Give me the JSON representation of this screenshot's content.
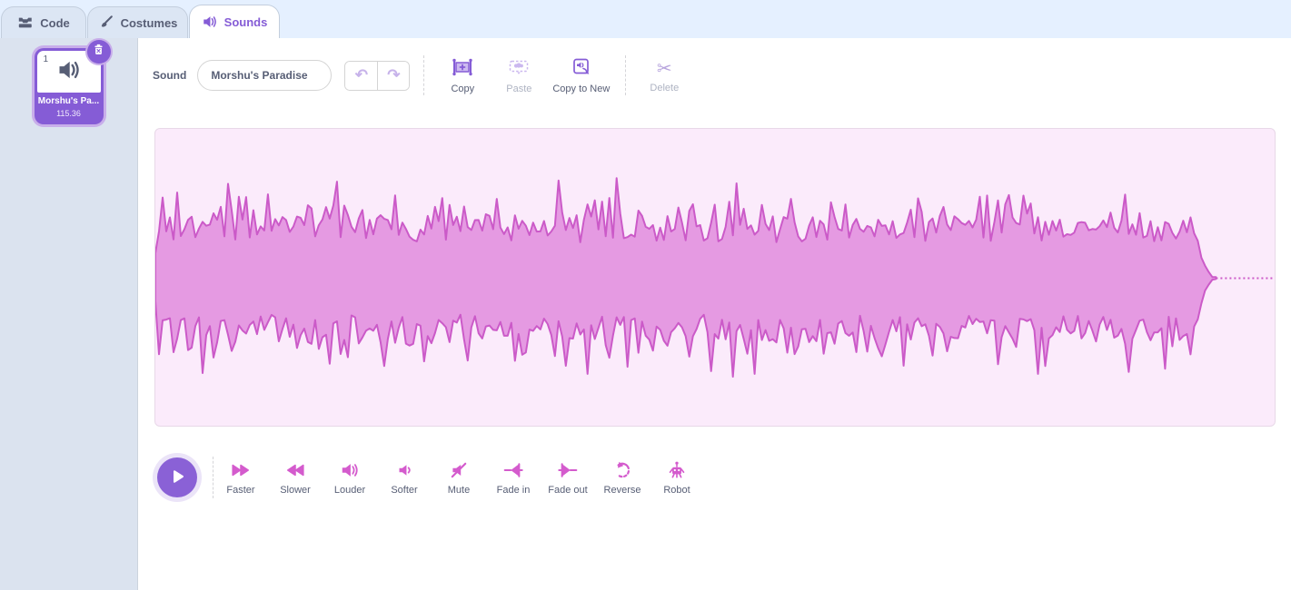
{
  "tabs": [
    {
      "label": "Code",
      "active": false
    },
    {
      "label": "Costumes",
      "active": false
    },
    {
      "label": "Sounds",
      "active": true
    }
  ],
  "sidebar": {
    "sound_tile": {
      "index": "1",
      "name": "Morshu's Pa...",
      "duration": "115.36"
    }
  },
  "toolbar": {
    "sound_label": "Sound",
    "name_value": "Morshu's Paradise",
    "copy_label": "Copy",
    "paste_label": "Paste",
    "copy_to_new_label": "Copy to New",
    "delete_label": "Delete"
  },
  "effects": [
    {
      "label": "Faster"
    },
    {
      "label": "Slower"
    },
    {
      "label": "Louder"
    },
    {
      "label": "Softer"
    },
    {
      "label": "Mute"
    },
    {
      "label": "Fade in"
    },
    {
      "label": "Fade out"
    },
    {
      "label": "Reverse"
    },
    {
      "label": "Robot"
    }
  ],
  "colors": {
    "accent_purple": "#855cd6",
    "accent_pink": "#d45bcd",
    "waveform_fill": "#e59ae2",
    "waveform_stroke": "#cb5ac8",
    "waveform_bg": "#fbebfb",
    "tab_bar_bg": "#e5f0ff",
    "sidebar_bg": "#dbe3ef"
  },
  "waveform": {
    "seed": 20,
    "columns": 292,
    "active_ratio": 0.946,
    "min_amplitude": 0.24,
    "random_amplitude": 0.17,
    "spike_amplitude": 0.27
  }
}
